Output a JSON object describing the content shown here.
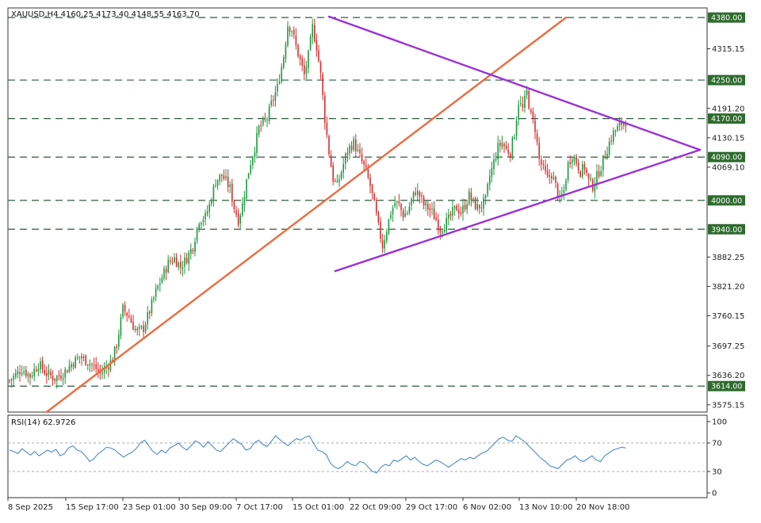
{
  "chart_data": [
    {
      "type": "candlestick",
      "title": "XAUUSD,H4  4160.25 4173.40 4148.55 4163.70",
      "symbol": "XAUUSD",
      "timeframe": "H4",
      "ohlc_header": {
        "open": 4160.25,
        "high": 4173.4,
        "low": 4148.55,
        "close": 4163.7
      },
      "ylim": [
        3560,
        4400
      ],
      "y_ticks": [
        "4315.15",
        "4191.20",
        "4130.15",
        "4069.10",
        "3882.25",
        "3821.20",
        "3760.15",
        "3697.25",
        "3636.20",
        "3575.15"
      ],
      "horizontal_levels": [
        {
          "label": "4380.00",
          "value": 4380
        },
        {
          "label": "4250.00",
          "value": 4250
        },
        {
          "label": "4170.00",
          "value": 4170
        },
        {
          "label": "4090.00",
          "value": 4090
        },
        {
          "label": "4000.00",
          "value": 4000
        },
        {
          "label": "3940.00",
          "value": 3940
        },
        {
          "label": "3614.00",
          "value": 3614
        }
      ],
      "x_labels": [
        "8 Sep 2025",
        "15 Sep 17:00",
        "23 Sep 01:00",
        "30 Sep 09:00",
        "7 Oct 17:00",
        "15 Oct 01:00",
        "22 Oct 09:00",
        "29 Oct 17:00",
        "6 Nov 02:00",
        "13 Nov 10:00",
        "20 Nov 18:00"
      ],
      "price_path": [
        [
          0,
          3625
        ],
        [
          6,
          3650
        ],
        [
          10,
          3635
        ],
        [
          14,
          3660
        ],
        [
          18,
          3640
        ],
        [
          22,
          3630
        ],
        [
          26,
          3640
        ],
        [
          30,
          3660
        ],
        [
          34,
          3675
        ],
        [
          38,
          3665
        ],
        [
          42,
          3650
        ],
        [
          44,
          3640
        ],
        [
          46,
          3648
        ],
        [
          50,
          3670
        ],
        [
          52,
          3700
        ],
        [
          55,
          3775
        ],
        [
          58,
          3758
        ],
        [
          60,
          3740
        ],
        [
          62,
          3725
        ],
        [
          65,
          3735
        ],
        [
          68,
          3770
        ],
        [
          71,
          3810
        ],
        [
          74,
          3840
        ],
        [
          77,
          3870
        ],
        [
          80,
          3880
        ],
        [
          83,
          3862
        ],
        [
          86,
          3880
        ],
        [
          89,
          3905
        ],
        [
          92,
          3960
        ],
        [
          95,
          3965
        ],
        [
          97,
          3990
        ],
        [
          100,
          4040
        ],
        [
          103,
          4052
        ],
        [
          105,
          4040
        ],
        [
          107,
          4025
        ],
        [
          109,
          3985
        ],
        [
          111,
          3960
        ],
        [
          113,
          3990
        ],
        [
          115,
          4040
        ],
        [
          117,
          4080
        ],
        [
          119,
          4110
        ],
        [
          121,
          4150
        ],
        [
          123,
          4160
        ],
        [
          125,
          4170
        ],
        [
          127,
          4200
        ],
        [
          130,
          4235
        ],
        [
          133,
          4300
        ],
        [
          135,
          4365
        ],
        [
          137,
          4355
        ],
        [
          139,
          4320
        ],
        [
          141,
          4290
        ],
        [
          143,
          4260
        ],
        [
          145,
          4300
        ],
        [
          147,
          4360
        ],
        [
          149,
          4320
        ],
        [
          151,
          4260
        ],
        [
          153,
          4170
        ],
        [
          155,
          4100
        ],
        [
          157,
          4045
        ],
        [
          159,
          4030
        ],
        [
          161,
          4060
        ],
        [
          163,
          4090
        ],
        [
          165,
          4110
        ],
        [
          167,
          4120
        ],
        [
          169,
          4100
        ],
        [
          171,
          4080
        ],
        [
          173,
          4060
        ],
        [
          175,
          4030
        ],
        [
          177,
          3990
        ],
        [
          179,
          3945
        ],
        [
          181,
          3905
        ],
        [
          183,
          3940
        ],
        [
          185,
          3975
        ],
        [
          187,
          3995
        ],
        [
          189,
          3990
        ],
        [
          191,
          3970
        ],
        [
          193,
          3975
        ],
        [
          195,
          4000
        ],
        [
          197,
          4020
        ],
        [
          199,
          4010
        ],
        [
          201,
          3990
        ],
        [
          203,
          3985
        ],
        [
          205,
          3975
        ],
        [
          207,
          3960
        ],
        [
          209,
          3940
        ],
        [
          211,
          3950
        ],
        [
          213,
          3960
        ],
        [
          215,
          3975
        ],
        [
          217,
          3985
        ],
        [
          219,
          3975
        ],
        [
          221,
          3990
        ],
        [
          223,
          4010
        ],
        [
          225,
          3995
        ],
        [
          227,
          3985
        ],
        [
          229,
          3990
        ],
        [
          231,
          4000
        ],
        [
          233,
          4050
        ],
        [
          235,
          4080
        ],
        [
          237,
          4110
        ],
        [
          239,
          4120
        ],
        [
          241,
          4105
        ],
        [
          243,
          4100
        ],
        [
          245,
          4140
        ],
        [
          247,
          4205
        ],
        [
          249,
          4190
        ],
        [
          251,
          4225
        ],
        [
          253,
          4175
        ],
        [
          255,
          4150
        ],
        [
          257,
          4085
        ],
        [
          259,
          4065
        ],
        [
          261,
          4045
        ],
        [
          263,
          4055
        ],
        [
          265,
          4030
        ],
        [
          267,
          4000
        ],
        [
          269,
          4020
        ],
        [
          271,
          4075
        ],
        [
          273,
          4095
        ],
        [
          275,
          4080
        ],
        [
          277,
          4060
        ],
        [
          279,
          4070
        ],
        [
          281,
          4040
        ],
        [
          283,
          4030
        ],
        [
          285,
          4050
        ],
        [
          287,
          4070
        ],
        [
          289,
          4095
        ],
        [
          291,
          4120
        ],
        [
          293,
          4140
        ],
        [
          295,
          4150
        ],
        [
          297,
          4160
        ],
        [
          299,
          4165
        ]
      ],
      "trendlines": [
        {
          "name": "orange-rising",
          "color": "#ee6a3e",
          "points": [
            [
              18,
              3560
            ],
            [
              270,
              4380
            ]
          ]
        },
        {
          "name": "purple-upper",
          "color": "#9b30d8",
          "points": [
            [
              155,
              4382
            ],
            [
              335,
              4105
            ]
          ]
        },
        {
          "name": "purple-lower",
          "color": "#9b30d8",
          "points": [
            [
              158,
              3853
            ],
            [
              335,
              4105
            ]
          ]
        }
      ],
      "colors": {
        "bull": "#1a9a3c",
        "bear": "#d92b2b",
        "level_line": "#2f5a3f",
        "level_tag_bg": "#2e6b2e",
        "orange_line": "#ee6a3e",
        "purple_line": "#9b30d8"
      }
    },
    {
      "type": "line",
      "title": "RSI(14) 62.9726",
      "indicator": "RSI",
      "period": 14,
      "current_value": 62.9726,
      "ylim": [
        0,
        100
      ],
      "y_ticks": [
        "100",
        "70",
        "30",
        "0"
      ],
      "levels": [
        70,
        30
      ],
      "values": [
        60,
        58,
        55,
        62,
        57,
        53,
        58,
        52,
        56,
        60,
        57,
        61,
        52,
        55,
        63,
        66,
        60,
        58,
        52,
        44,
        48,
        55,
        59,
        64,
        63,
        60,
        55,
        50,
        54,
        57,
        62,
        70,
        74,
        66,
        58,
        54,
        60,
        56,
        63,
        66,
        70,
        64,
        60,
        66,
        73,
        70,
        64,
        72,
        66,
        60,
        58,
        64,
        70,
        76,
        72,
        68,
        60,
        62,
        70,
        74,
        68,
        65,
        72,
        80,
        75,
        70,
        66,
        72,
        76,
        74,
        78,
        80,
        70,
        60,
        58,
        54,
        42,
        36,
        34,
        38,
        44,
        40,
        38,
        44,
        42,
        36,
        30,
        28,
        36,
        40,
        38,
        46,
        44,
        48,
        52,
        46,
        50,
        44,
        40,
        38,
        42,
        46,
        44,
        40,
        36,
        40,
        44,
        48,
        46,
        50,
        48,
        52,
        56,
        58,
        64,
        70,
        76,
        78,
        74,
        72,
        80,
        76,
        72,
        66,
        60,
        54,
        48,
        44,
        38,
        36,
        34,
        40,
        46,
        48,
        52,
        46,
        44,
        48,
        52,
        46,
        44,
        52,
        56,
        60,
        62,
        64,
        63
      ],
      "color": "#3a7fd0"
    }
  ]
}
